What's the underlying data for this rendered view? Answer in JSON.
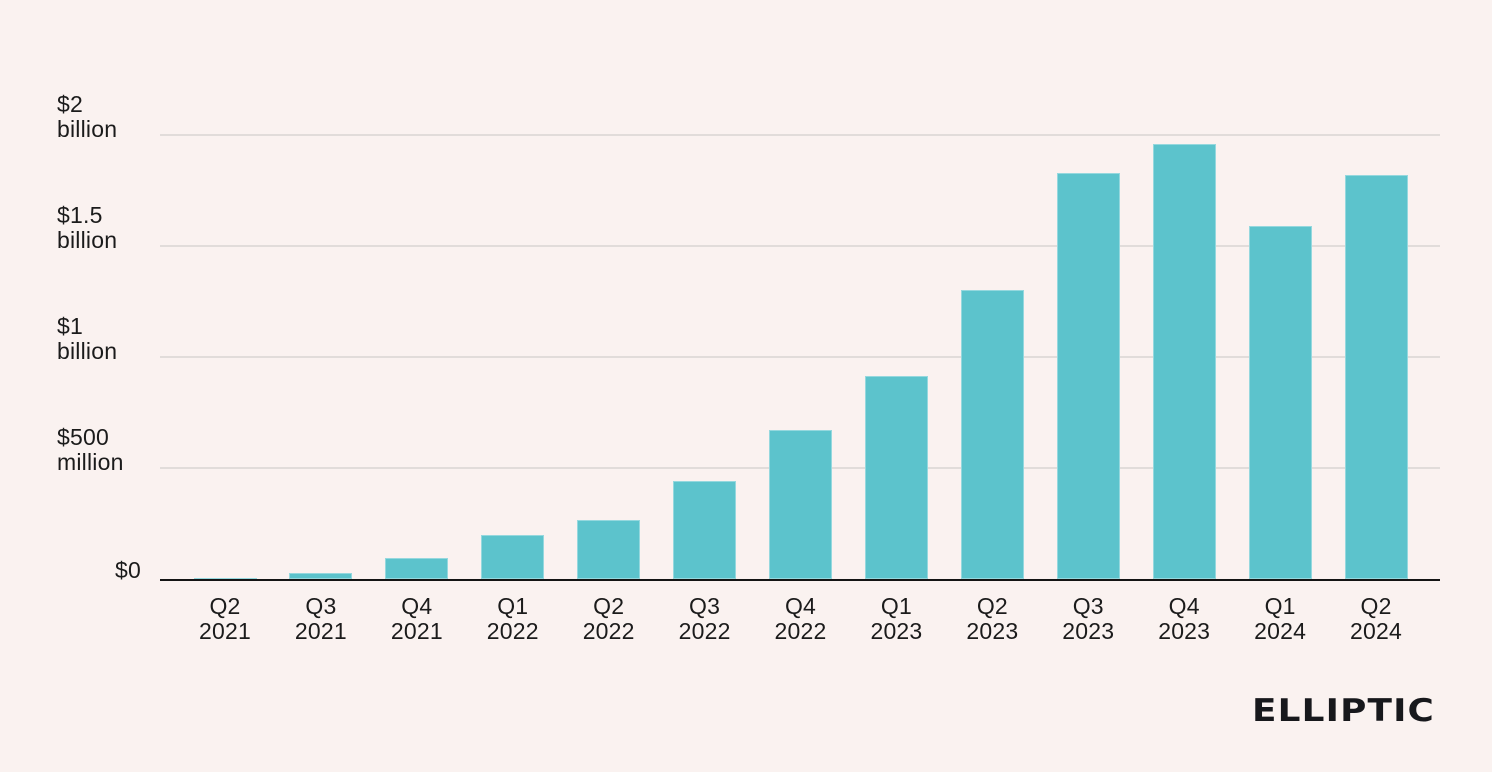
{
  "colors": {
    "background": "#FAF2F0",
    "bar": "#5CC3CC",
    "grid": "#E1DCDA",
    "axis": "#141414",
    "text": "#1B1B1B",
    "logo": "#17181C"
  },
  "logo": {
    "text": "ELLIPTIC"
  },
  "chart_data": {
    "type": "bar",
    "unit": "USD millions",
    "categories": [
      "Q2 2021",
      "Q3 2021",
      "Q4 2021",
      "Q1 2022",
      "Q2 2022",
      "Q3 2022",
      "Q4 2022",
      "Q1 2023",
      "Q2 2023",
      "Q3 2023",
      "Q4 2023",
      "Q1 2024",
      "Q2 2024"
    ],
    "values_usd_millions": [
      4,
      28,
      95,
      200,
      265,
      440,
      670,
      915,
      1300,
      1830,
      1960,
      1590,
      1820
    ],
    "ylim_usd_millions": [
      0,
      2000
    ],
    "y_ticks": [
      {
        "value_usd_millions": 2000,
        "label_lines": [
          "$2",
          "billion"
        ]
      },
      {
        "value_usd_millions": 1500,
        "label_lines": [
          "$1.5",
          "billion"
        ]
      },
      {
        "value_usd_millions": 1000,
        "label_lines": [
          "$1",
          "billion"
        ]
      },
      {
        "value_usd_millions": 500,
        "label_lines": [
          "$500",
          "million"
        ]
      },
      {
        "value_usd_millions": 0,
        "label_lines": [
          "$0"
        ]
      }
    ],
    "grid": true,
    "legend_position": "none",
    "bar_color": "#5CC3CC"
  }
}
